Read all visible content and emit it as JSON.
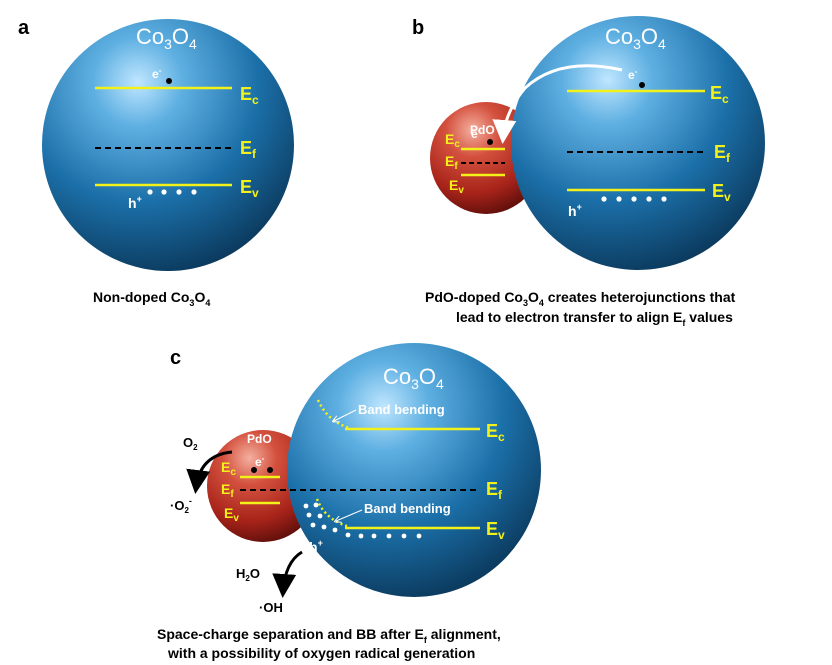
{
  "panels": {
    "a": {
      "letter": "a",
      "sphere": {
        "base": "Co",
        "sub1": "3",
        "mid": "O",
        "sub2": "4"
      },
      "electron": "e",
      "electron_sup": "-",
      "hole": "h",
      "hole_sup": "+",
      "ec": {
        "base": "E",
        "sub": "c"
      },
      "ef": {
        "base": "E",
        "sub": "f"
      },
      "ev": {
        "base": "E",
        "sub": "v"
      },
      "caption": {
        "pre": "Non-doped Co",
        "sub1": "3",
        "mid": "O",
        "sub2": "4"
      }
    },
    "b": {
      "letter": "b",
      "sphere": {
        "base": "Co",
        "sub1": "3",
        "mid": "O",
        "sub2": "4"
      },
      "dopant": "PdO",
      "electron": "e",
      "electron_sup": "-",
      "dopant_electron": "e",
      "dopant_electron_sup": "-",
      "hole": "h",
      "hole_sup": "+",
      "ec": {
        "base": "E",
        "sub": "c"
      },
      "ef": {
        "base": "E",
        "sub": "f"
      },
      "ev": {
        "base": "E",
        "sub": "v"
      },
      "caption_line1": {
        "pre": "PdO-doped Co",
        "sub1": "3",
        "mid": "O",
        "sub2": "4",
        "post": " creates heterojunctions that"
      },
      "caption_line2": {
        "pre": "lead to electron transfer to align E",
        "sub": "f",
        "post": "  values"
      }
    },
    "c": {
      "letter": "c",
      "sphere": {
        "base": "Co",
        "sub1": "3",
        "mid": "O",
        "sub2": "4"
      },
      "dopant": "PdO",
      "electron": "e",
      "electron_sup": "-",
      "hole": "h",
      "hole_sup": "+",
      "band_bending_top": "Band bending",
      "band_bending_bottom": "Band bending",
      "ec": {
        "base": "E",
        "sub": "c"
      },
      "ef": {
        "base": "E",
        "sub": "f"
      },
      "ev": {
        "base": "E",
        "sub": "v"
      },
      "o2": {
        "base": "O",
        "sub": "2"
      },
      "superoxide": {
        "pre": "·O",
        "sub": "2",
        "sup": "-"
      },
      "h2o": {
        "base": "H",
        "sub": "2",
        "post": "O"
      },
      "oh": "·OH",
      "caption_line1": {
        "pre": "Space-charge separation and BB after E",
        "sub": "f",
        "post": " alignment,"
      },
      "caption_line2": "with a possibility of oxygen radical generation"
    }
  },
  "colors": {
    "sphere_blue": "#1b6fa8",
    "sphere_red": "#b3261e",
    "band_yellow": "#f2f21a",
    "fermi_dashed": "#000000",
    "hole_dots": "#ffffff"
  }
}
